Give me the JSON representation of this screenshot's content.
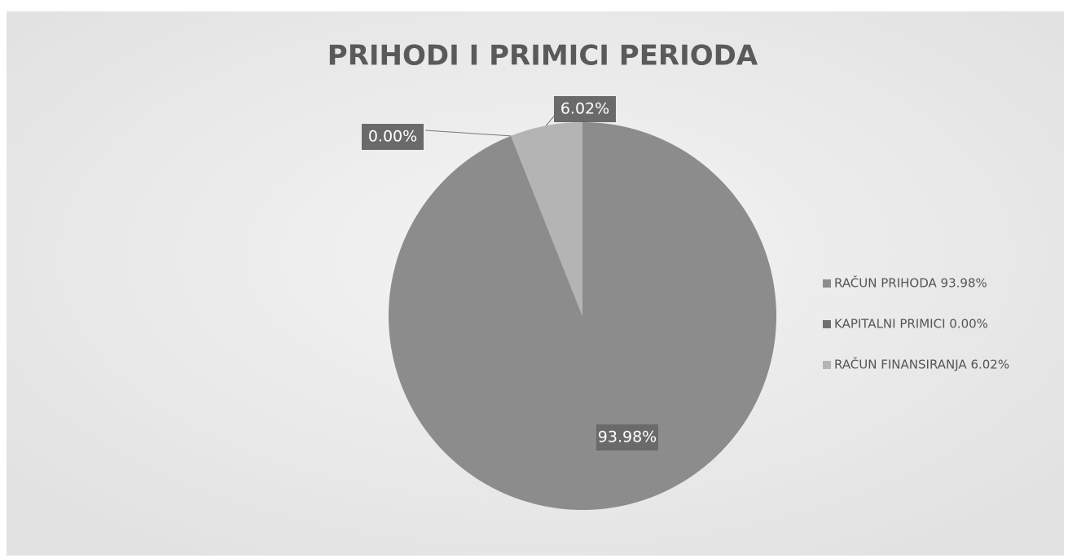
{
  "chart_data": {
    "type": "pie",
    "title": "PRIHODI I PRIMICI PERIODA",
    "categories": [
      "RAČUN PRIHODA  93.98%",
      "KAPITALNI PRIMICI 0.00%",
      "RAČUN FINANSIRANJA 6.02%"
    ],
    "values": [
      93.98,
      0.0,
      6.02
    ],
    "value_labels": [
      "93.98%",
      "0.00%",
      "6.02%"
    ],
    "colors": [
      "#8c8c8c",
      "#707070",
      "#b4b4b4"
    ],
    "legend": "right"
  }
}
